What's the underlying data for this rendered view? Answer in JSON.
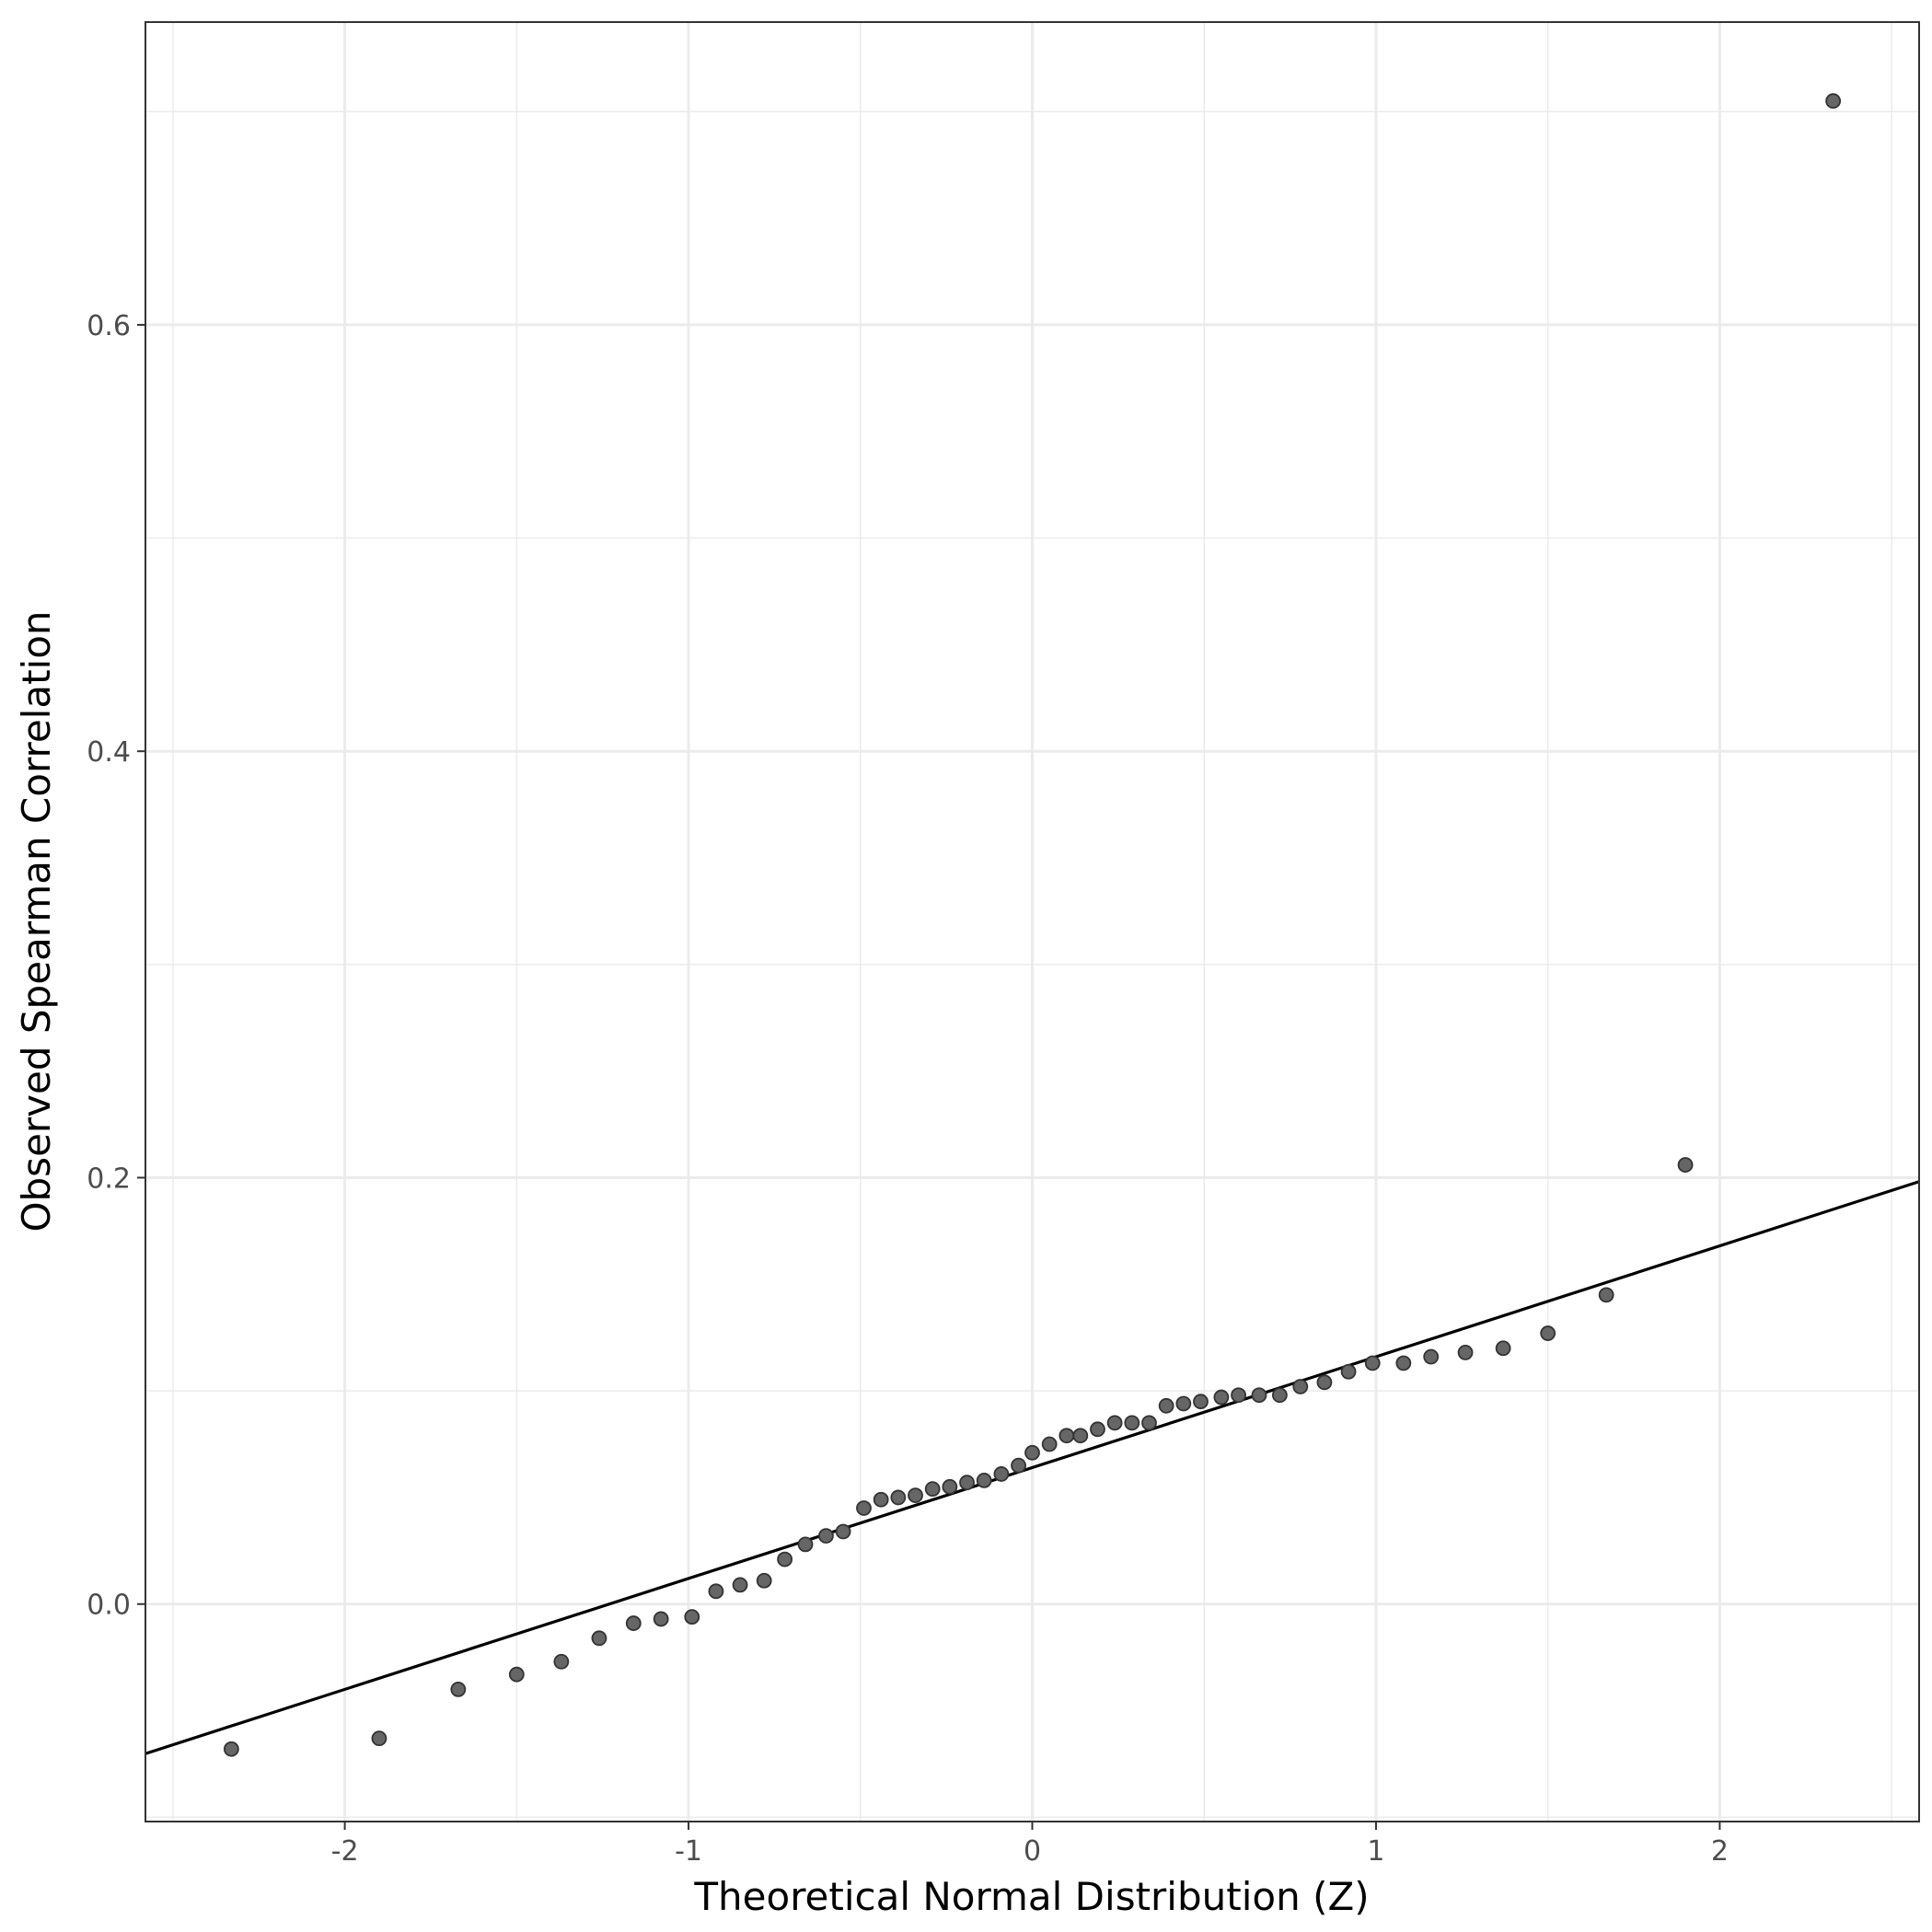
{
  "chart_data": {
    "type": "scatter",
    "xlabel": "Theoretical Normal Distribution (Z)",
    "ylabel": "Observed Spearman Correlation",
    "xlim": [
      -2.58,
      2.58
    ],
    "ylim": [
      -0.102,
      0.742
    ],
    "x_ticks": [
      -2,
      -1,
      0,
      1,
      2
    ],
    "x_tick_labels": [
      "-2",
      "-1",
      "0",
      "1",
      "2"
    ],
    "y_ticks": [
      0.0,
      0.2,
      0.4,
      0.6
    ],
    "y_tick_labels": [
      "0.0",
      "0.2",
      "0.4",
      "0.6"
    ],
    "grid": true,
    "point_color": "#666666",
    "line_color": "#000000",
    "reference_line": {
      "intercept": 0.064,
      "slope": 0.052
    },
    "points": [
      {
        "x": -2.33,
        "y": -0.068
      },
      {
        "x": -1.9,
        "y": -0.063
      },
      {
        "x": -1.67,
        "y": -0.04
      },
      {
        "x": -1.5,
        "y": -0.033
      },
      {
        "x": -1.37,
        "y": -0.027
      },
      {
        "x": -1.26,
        "y": -0.016
      },
      {
        "x": -1.16,
        "y": -0.009
      },
      {
        "x": -1.08,
        "y": -0.007
      },
      {
        "x": -0.99,
        "y": -0.006
      },
      {
        "x": -0.92,
        "y": 0.006
      },
      {
        "x": -0.85,
        "y": 0.009
      },
      {
        "x": -0.78,
        "y": 0.011
      },
      {
        "x": -0.72,
        "y": 0.021
      },
      {
        "x": -0.66,
        "y": 0.028
      },
      {
        "x": -0.6,
        "y": 0.032
      },
      {
        "x": -0.55,
        "y": 0.034
      },
      {
        "x": -0.49,
        "y": 0.045
      },
      {
        "x": -0.44,
        "y": 0.049
      },
      {
        "x": -0.39,
        "y": 0.05
      },
      {
        "x": -0.34,
        "y": 0.051
      },
      {
        "x": -0.29,
        "y": 0.054
      },
      {
        "x": -0.24,
        "y": 0.055
      },
      {
        "x": -0.19,
        "y": 0.057
      },
      {
        "x": -0.14,
        "y": 0.058
      },
      {
        "x": -0.09,
        "y": 0.061
      },
      {
        "x": -0.04,
        "y": 0.065
      },
      {
        "x": 0.0,
        "y": 0.071
      },
      {
        "x": 0.05,
        "y": 0.075
      },
      {
        "x": 0.1,
        "y": 0.079
      },
      {
        "x": 0.14,
        "y": 0.079
      },
      {
        "x": 0.19,
        "y": 0.082
      },
      {
        "x": 0.24,
        "y": 0.085
      },
      {
        "x": 0.29,
        "y": 0.085
      },
      {
        "x": 0.34,
        "y": 0.085
      },
      {
        "x": 0.39,
        "y": 0.093
      },
      {
        "x": 0.44,
        "y": 0.094
      },
      {
        "x": 0.49,
        "y": 0.095
      },
      {
        "x": 0.55,
        "y": 0.097
      },
      {
        "x": 0.6,
        "y": 0.098
      },
      {
        "x": 0.66,
        "y": 0.098
      },
      {
        "x": 0.72,
        "y": 0.098
      },
      {
        "x": 0.78,
        "y": 0.102
      },
      {
        "x": 0.85,
        "y": 0.104
      },
      {
        "x": 0.92,
        "y": 0.109
      },
      {
        "x": 0.99,
        "y": 0.113
      },
      {
        "x": 1.08,
        "y": 0.113
      },
      {
        "x": 1.16,
        "y": 0.116
      },
      {
        "x": 1.26,
        "y": 0.118
      },
      {
        "x": 1.37,
        "y": 0.12
      },
      {
        "x": 1.5,
        "y": 0.127
      },
      {
        "x": 1.67,
        "y": 0.145
      },
      {
        "x": 1.9,
        "y": 0.206
      },
      {
        "x": 2.33,
        "y": 0.705
      }
    ]
  }
}
